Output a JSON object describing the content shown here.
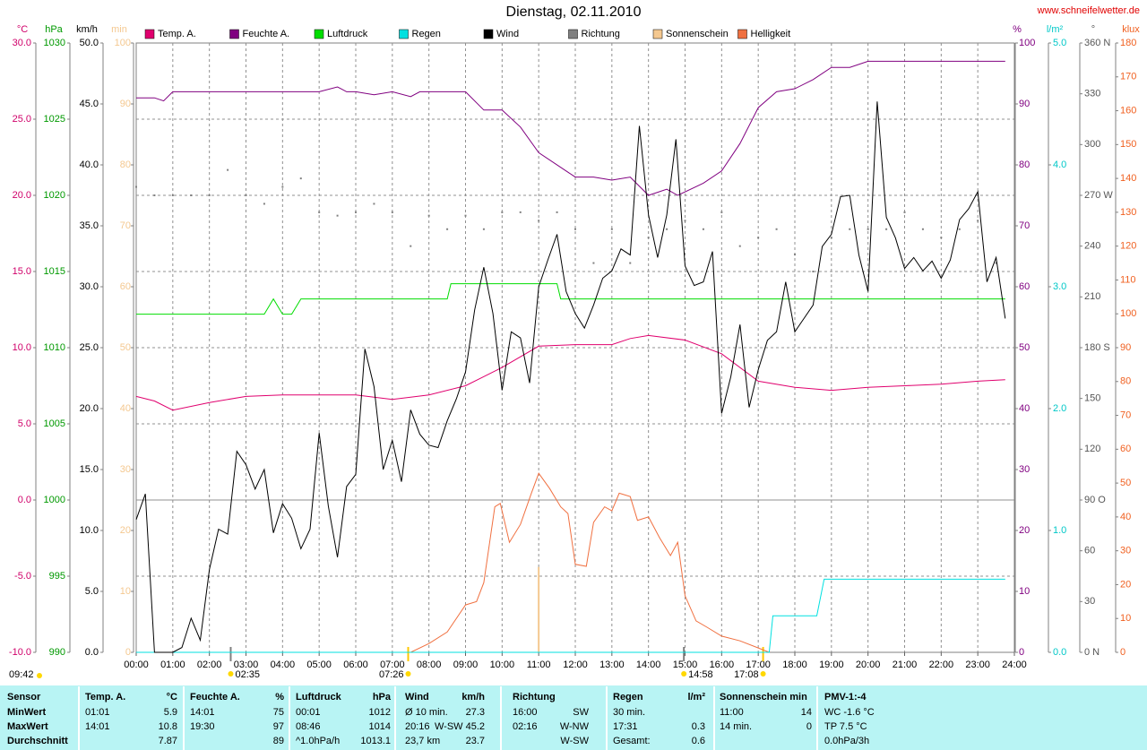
{
  "chart_data": {
    "type": "line",
    "title": "Dienstag, 02.11.2010",
    "source": "www.schneifelwetter.de",
    "updated": "09:42",
    "grid": true,
    "xlim": [
      0,
      24
    ],
    "xticks": [
      {
        "value": 0,
        "label": "00:00"
      },
      {
        "value": 1,
        "label": "01:00"
      },
      {
        "value": 2,
        "label": "02:00"
      },
      {
        "value": 3,
        "label": "03:00"
      },
      {
        "value": 4,
        "label": "04:00"
      },
      {
        "value": 5,
        "label": "05:00"
      },
      {
        "value": 6,
        "label": "06:00"
      },
      {
        "value": 7,
        "label": "07:00"
      },
      {
        "value": 8,
        "label": "08:00"
      },
      {
        "value": 9,
        "label": "09:00"
      },
      {
        "value": 10,
        "label": "10:00"
      },
      {
        "value": 11,
        "label": "11:00"
      },
      {
        "value": 12,
        "label": "12:00"
      },
      {
        "value": 13,
        "label": "13:00"
      },
      {
        "value": 14,
        "label": "14:00"
      },
      {
        "value": 15,
        "label": "15:00"
      },
      {
        "value": 16,
        "label": "16:00"
      },
      {
        "value": 17,
        "label": "17:00"
      },
      {
        "value": 18,
        "label": "18:00"
      },
      {
        "value": 19,
        "label": "19:00"
      },
      {
        "value": 20,
        "label": "20:00"
      },
      {
        "value": 21,
        "label": "21:00"
      },
      {
        "value": 22,
        "label": "22:00"
      },
      {
        "value": 23,
        "label": "23:00"
      },
      {
        "value": 24,
        "label": "24:00"
      }
    ],
    "markers": [
      {
        "x": 2.583,
        "label": "02:35"
      },
      {
        "x": 7.433,
        "label": "07:26"
      },
      {
        "x": 14.967,
        "label": "14:58"
      },
      {
        "x": 17.133,
        "label": "17:08"
      }
    ],
    "axes": [
      {
        "label": "°C",
        "color": "#d0006a",
        "lim": [
          -10,
          30
        ],
        "ticks": [
          {
            "value": -10,
            "label": "-10.0"
          },
          {
            "value": -5,
            "label": "-5.0"
          },
          {
            "value": 0,
            "label": "0.0"
          },
          {
            "value": 5,
            "label": "5.0"
          },
          {
            "value": 10,
            "label": "10.0"
          },
          {
            "value": 15,
            "label": "15.0"
          },
          {
            "value": 20,
            "label": "20.0"
          },
          {
            "value": 25,
            "label": "25.0"
          },
          {
            "value": 30,
            "label": "30.0"
          }
        ]
      },
      {
        "label": "hPa",
        "color": "#009900",
        "lim": [
          990,
          1030
        ],
        "ticks": [
          990,
          995,
          1000,
          1005,
          1010,
          1015,
          1020,
          1025,
          1030
        ]
      },
      {
        "label": "km/h",
        "color": "#000000",
        "lim": [
          0,
          50
        ],
        "ticks": [
          {
            "value": 0,
            "label": "0.0"
          },
          {
            "value": 5,
            "label": "5.0"
          },
          {
            "value": 10,
            "label": "10.0"
          },
          {
            "value": 15,
            "label": "15.0"
          },
          {
            "value": 20,
            "label": "20.0"
          },
          {
            "value": 25,
            "label": "25.0"
          },
          {
            "value": 30,
            "label": "30.0"
          },
          {
            "value": 35,
            "label": "35.0"
          },
          {
            "value": 40,
            "label": "40.0"
          },
          {
            "value": 45,
            "label": "45.0"
          },
          {
            "value": 50,
            "label": "50.0"
          }
        ]
      },
      {
        "label": "min",
        "color": "#f4c890",
        "lim": [
          0,
          100
        ],
        "ticks": [
          0,
          10,
          20,
          30,
          40,
          50,
          60,
          70,
          80,
          90,
          100
        ]
      },
      {
        "label": "%",
        "color": "#800080",
        "lim": [
          0,
          100
        ],
        "ticks": [
          0,
          10,
          20,
          30,
          40,
          50,
          60,
          70,
          80,
          90,
          100
        ]
      },
      {
        "label": "l/m²",
        "color": "#00c8c8",
        "lim": [
          0,
          5
        ],
        "ticks": [
          {
            "value": 0,
            "label": "0.0"
          },
          {
            "value": 1,
            "label": "1.0"
          },
          {
            "value": 2,
            "label": "2.0"
          },
          {
            "value": 3,
            "label": "3.0"
          },
          {
            "value": 4,
            "label": "4.0"
          },
          {
            "value": 5,
            "label": "5.0"
          }
        ]
      },
      {
        "label": "°",
        "color": "#555555",
        "lim": [
          0,
          360
        ],
        "ticks": [
          {
            "value": 0,
            "label": "0 N"
          },
          30,
          60,
          {
            "value": 90,
            "label": "90 O"
          },
          120,
          150,
          {
            "value": 180,
            "label": "180 S"
          },
          210,
          240,
          {
            "value": 270,
            "label": "270 W"
          },
          300,
          330,
          {
            "value": 360,
            "label": "360 N"
          }
        ]
      },
      {
        "label": "klux",
        "color": "#f06020",
        "lim": [
          0,
          180
        ],
        "ticks": [
          0,
          10,
          20,
          30,
          40,
          50,
          60,
          70,
          80,
          90,
          100,
          110,
          120,
          130,
          140,
          150,
          160,
          170,
          180
        ]
      }
    ],
    "series": [
      {
        "name": "Temp. A.",
        "color": "#e0006e",
        "type": "line",
        "axis": 0,
        "x": [
          0,
          0.5,
          1,
          2,
          3,
          4,
          5,
          6,
          7,
          8,
          9,
          9.5,
          10,
          11,
          12,
          13,
          13.5,
          14,
          15,
          16,
          17,
          18,
          19,
          20,
          21,
          22,
          23,
          23.75
        ],
        "values": [
          6.8,
          6.5,
          5.9,
          6.4,
          6.8,
          6.9,
          6.9,
          6.9,
          6.6,
          6.9,
          7.5,
          8.1,
          8.7,
          10.1,
          10.2,
          10.2,
          10.6,
          10.8,
          10.5,
          9.6,
          7.8,
          7.4,
          7.2,
          7.4,
          7.5,
          7.6,
          7.8,
          7.9
        ]
      },
      {
        "name": "Feuchte A.",
        "color": "#800080",
        "type": "line",
        "axis": 4,
        "x": [
          0,
          0.5,
          0.75,
          1,
          2,
          3,
          4,
          5,
          5.5,
          5.75,
          6,
          6.5,
          7,
          7.5,
          7.75,
          8,
          9,
          9.5,
          10,
          10.5,
          11,
          12,
          12.5,
          13,
          13.5,
          14,
          14.5,
          14.8,
          15.5,
          16,
          16.5,
          17,
          17.5,
          18,
          18.5,
          19,
          19.5,
          20,
          23.75
        ],
        "values": [
          91,
          91,
          90.5,
          92,
          92,
          92,
          92,
          92,
          92.8,
          92,
          92,
          91.5,
          92,
          91.2,
          92,
          92,
          92,
          89,
          89,
          86.2,
          82,
          78,
          78,
          77.5,
          78,
          75,
          76,
          75,
          77,
          79,
          83.5,
          89.4,
          92,
          92.5,
          94,
          96,
          96,
          97,
          97
        ]
      },
      {
        "name": "Luftdruck",
        "color": "#00dd00",
        "type": "line",
        "axis": 1,
        "x": [
          0,
          3.5,
          3.75,
          4,
          4.25,
          4.5,
          8.5,
          8.6,
          11.5,
          11.6,
          23.75
        ],
        "values": [
          1012.2,
          1012.2,
          1013.2,
          1012.2,
          1012.2,
          1013.2,
          1013.2,
          1014.2,
          1014.2,
          1013.2,
          1013.2
        ]
      },
      {
        "name": "Regen",
        "color": "#00e0e0",
        "type": "line",
        "axis": 5,
        "x": [
          0,
          17.3,
          17.4,
          18.6,
          18.8,
          23.75
        ],
        "values": [
          0,
          0,
          0.3,
          0.3,
          0.6,
          0.6
        ]
      },
      {
        "name": "Wind",
        "color": "#000000",
        "type": "line",
        "axis": 2,
        "x": [
          0,
          0.25,
          0.5,
          0.75,
          1,
          1.25,
          1.5,
          1.75,
          2,
          2.25,
          2.5,
          2.75,
          3,
          3.25,
          3.5,
          3.75,
          4,
          4.25,
          4.5,
          4.75,
          5,
          5.25,
          5.5,
          5.75,
          6,
          6.25,
          6.5,
          6.75,
          7,
          7.25,
          7.5,
          7.75,
          8,
          8.25,
          8.5,
          8.75,
          9,
          9.25,
          9.5,
          9.75,
          10,
          10.25,
          10.5,
          10.75,
          11,
          11.25,
          11.5,
          11.75,
          12,
          12.25,
          12.5,
          12.75,
          13,
          13.25,
          13.5,
          13.75,
          14,
          14.25,
          14.5,
          14.75,
          15,
          15.25,
          15.5,
          15.75,
          16,
          16.25,
          16.5,
          16.75,
          17,
          17.25,
          17.5,
          17.75,
          18,
          18.25,
          18.5,
          18.75,
          19,
          19.25,
          19.5,
          19.75,
          20,
          20.25,
          20.5,
          20.75,
          21,
          21.25,
          21.5,
          21.75,
          22,
          22.25,
          22.5,
          22.75,
          23,
          23.25,
          23.5,
          23.75
        ],
        "values": [
          10.9,
          13.0,
          0,
          0,
          0,
          0.4,
          2.8,
          1.0,
          6.8,
          10.1,
          9.7,
          16.5,
          15.4,
          13.4,
          15.0,
          9.8,
          12.2,
          11.0,
          8.5,
          10.1,
          18.0,
          12.0,
          7.8,
          13.6,
          14.6,
          24.9,
          21.8,
          15.0,
          17.4,
          14.0,
          19.9,
          17.9,
          17.0,
          16.8,
          19.0,
          20.8,
          23.0,
          28.1,
          31.6,
          27.8,
          21.5,
          26.3,
          25.8,
          22.1,
          30.0,
          32.2,
          34.3,
          29.6,
          27.8,
          26.6,
          28.5,
          30.7,
          31.3,
          33.1,
          32.6,
          43.2,
          35.9,
          32.4,
          35.9,
          42.1,
          31.7,
          30.1,
          30.4,
          32.9,
          19.6,
          22.6,
          26.9,
          20.1,
          23.2,
          25.6,
          26.3,
          30.4,
          26.3,
          27.4,
          28.5,
          33.3,
          34.3,
          37.4,
          37.5,
          32.6,
          29.6,
          45.2,
          35.7,
          34.0,
          31.5,
          32.4,
          31.3,
          32.1,
          30.7,
          32.2,
          35.5,
          36.4,
          37.8,
          30.4,
          32.4,
          27.4
        ]
      },
      {
        "name": "Richtung",
        "color": "#808080",
        "type": "scatter",
        "axis": 6,
        "x": [
          0,
          0.5,
          1,
          1.5,
          2,
          2.5,
          3,
          3.5,
          4,
          4.5,
          5,
          5.5,
          6,
          6.5,
          7,
          7.5,
          8,
          8.5,
          9,
          9.5,
          10,
          10.5,
          11,
          11.5,
          12,
          12.5,
          13,
          13.5,
          14,
          14.5,
          15,
          15.5,
          16,
          16.5,
          17,
          17.5,
          18,
          18.5,
          19,
          19.5,
          20,
          20.5,
          21,
          21.5,
          22,
          22.5,
          23,
          23.5
        ],
        "values": [
          275,
          270,
          270,
          270,
          270,
          285,
          270,
          265,
          275,
          280,
          260,
          258,
          260,
          265,
          260,
          240,
          258,
          250,
          258,
          250,
          260,
          260,
          255,
          260,
          250,
          230,
          250,
          230,
          245,
          250,
          255,
          250,
          260,
          240,
          245,
          250,
          235,
          225,
          245,
          250,
          250,
          250,
          260,
          250,
          245,
          250,
          255,
          230
        ]
      },
      {
        "name": "Sonnenschein",
        "color": "#f4c890",
        "type": "bar",
        "axis": 3,
        "x": [
          11
        ],
        "values": [
          14
        ]
      },
      {
        "name": "Helligkeit",
        "color": "#f07040",
        "type": "line",
        "axis": 7,
        "x": [
          0,
          7.5,
          8,
          8.5,
          9,
          9.3,
          9.5,
          9.8,
          9.95,
          10.2,
          10.5,
          10.8,
          11,
          11.3,
          11.6,
          11.8,
          12,
          12.3,
          12.5,
          12.8,
          13,
          13.2,
          13.5,
          13.7,
          14,
          14.3,
          14.6,
          14.8,
          15,
          15.3,
          15.6,
          16,
          16.5,
          17,
          17.3
        ],
        "values": [
          0,
          0,
          2.6,
          6,
          14,
          15,
          20.6,
          43,
          44,
          32.5,
          37.8,
          47,
          52.9,
          48.4,
          43,
          41,
          26,
          25.4,
          38.4,
          43,
          41.8,
          47,
          46,
          39,
          40,
          33.9,
          28.6,
          32.5,
          16.7,
          9.3,
          7.4,
          4.8,
          3.4,
          1.3,
          0
        ]
      }
    ]
  },
  "table": {
    "header": [
      {
        "l": "Sensor"
      },
      {
        "l": "Temp. A.",
        "r": "°C"
      },
      {
        "l": "Feuchte A.",
        "r": "%"
      },
      {
        "l": "Luftdruck",
        "r": "hPa"
      },
      {
        "l": "Wind",
        "r": "km/h"
      },
      {
        "l": "Richtung"
      },
      {
        "l": "Regen",
        "r": "l/m²"
      },
      {
        "l": "Sonnenschein min"
      },
      {
        "l": "PMV-1:-4"
      }
    ],
    "rows": [
      [
        {
          "l": "MinWert"
        },
        {
          "l": "01:01",
          "r": "5.9"
        },
        {
          "l": "14:01",
          "r": "75"
        },
        {
          "l": "00:01",
          "r": "1012"
        },
        {
          "l": "Ø 10 min.",
          "r": "27.3"
        },
        {
          "l": "16:00",
          "r": "SW"
        },
        {
          "l": "30 min."
        },
        {
          "l": "11:00",
          "r": "14"
        },
        {
          "l": "WC -1.6 °C"
        }
      ],
      [
        {
          "l": "MaxWert"
        },
        {
          "l": "14:01",
          "r": "10.8"
        },
        {
          "l": "19:30",
          "r": "97"
        },
        {
          "l": "08:46",
          "r": "1014"
        },
        {
          "l": "20:16",
          "r": "W-SW 45.2"
        },
        {
          "l": "02:16",
          "r": "W-NW"
        },
        {
          "l": "17:31",
          "r": "0.3"
        },
        {
          "l": "14 min.",
          "r": "0"
        },
        {
          "l": "TP 7.5 °C"
        }
      ],
      [
        {
          "l": "Durchschnitt"
        },
        {
          "r": "7.87"
        },
        {
          "r": "89"
        },
        {
          "l": "^1.0hPa/h",
          "r": "1013.1"
        },
        {
          "l": "23,7 km",
          "r": "23.7"
        },
        {
          "r": "W-SW"
        },
        {
          "l": "Gesamt:",
          "r": "0.6"
        },
        {},
        {
          "l": "0.0hPa/3h"
        }
      ]
    ]
  }
}
